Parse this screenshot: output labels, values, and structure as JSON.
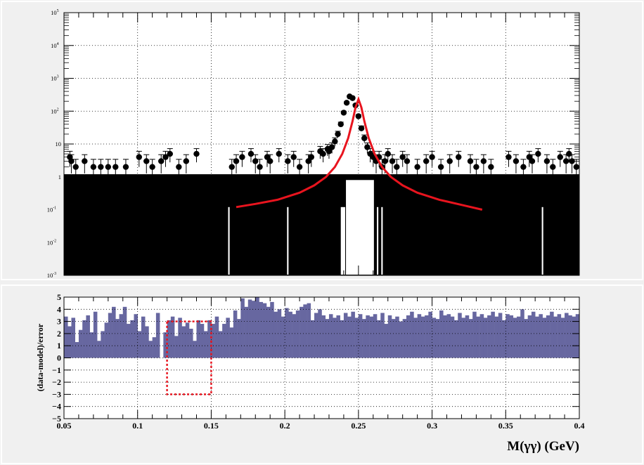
{
  "colors": {
    "background": "#f0f0f0",
    "frame": "#ffffff",
    "data_points": "#000000",
    "fit_curve": "#e8141e",
    "residual_bars": "#6767a0",
    "signal_window": "#e8141e"
  },
  "chart_data": [
    {
      "type": "scatter",
      "panel": "top",
      "title": "",
      "xlabel": "",
      "ylabel": "",
      "xlim": [
        0.05,
        0.4
      ],
      "ylim": [
        0.001,
        100000
      ],
      "yscale": "log",
      "grid": true,
      "ytick_labels": [
        "10^-3",
        "10^-2",
        "10^-1",
        "1",
        "10",
        "10^2",
        "10^3",
        "10^4",
        "10^5"
      ],
      "series": [
        {
          "style": "points-with-errors",
          "x": [
            0.054,
            0.055,
            0.058,
            0.064,
            0.07,
            0.075,
            0.08,
            0.085,
            0.092,
            0.101,
            0.106,
            0.11,
            0.116,
            0.119,
            0.122,
            0.128,
            0.133,
            0.14,
            0.164,
            0.167,
            0.171,
            0.177,
            0.18,
            0.183,
            0.188,
            0.19,
            0.196,
            0.202,
            0.206,
            0.21,
            0.216,
            0.218,
            0.224,
            0.226,
            0.229,
            0.23,
            0.232,
            0.234,
            0.236,
            0.238,
            0.24,
            0.242,
            0.244,
            0.246,
            0.248,
            0.25,
            0.252,
            0.254,
            0.256,
            0.258,
            0.26,
            0.262,
            0.264,
            0.266,
            0.268,
            0.27,
            0.273,
            0.276,
            0.28,
            0.283,
            0.29,
            0.296,
            0.3,
            0.306,
            0.312,
            0.318,
            0.326,
            0.33,
            0.335,
            0.34,
            0.352,
            0.357,
            0.362,
            0.366,
            0.368,
            0.372,
            0.378,
            0.382,
            0.387,
            0.391,
            0.393,
            0.395,
            0.398
          ],
          "y": [
            4,
            3,
            2,
            3,
            2,
            2,
            2,
            2,
            2,
            4,
            3,
            2,
            3,
            4,
            5,
            2,
            3,
            5,
            2,
            3,
            4,
            5,
            3,
            2,
            4,
            3,
            5,
            3,
            4,
            2,
            3,
            4,
            6,
            5,
            7,
            6,
            8,
            12,
            20,
            40,
            90,
            180,
            280,
            250,
            150,
            70,
            30,
            15,
            8,
            5,
            4,
            3,
            4,
            2,
            3,
            5,
            3,
            2,
            4,
            3,
            2,
            3,
            4,
            2,
            3,
            4,
            3,
            2,
            3,
            2,
            4,
            3,
            2,
            4,
            3,
            5,
            3,
            2,
            4,
            3,
            5,
            3,
            2
          ]
        },
        {
          "style": "line",
          "x": [
            0.167,
            0.18,
            0.195,
            0.21,
            0.22,
            0.228,
            0.234,
            0.239,
            0.243,
            0.246,
            0.248,
            0.25,
            0.252,
            0.254,
            0.257,
            0.261,
            0.266,
            0.272,
            0.28,
            0.29,
            0.305,
            0.32,
            0.334
          ],
          "y": [
            0.12,
            0.15,
            0.2,
            0.33,
            0.55,
            1.0,
            2.0,
            5.0,
            15,
            50,
            130,
            230,
            130,
            50,
            15,
            5.0,
            2.0,
            1.0,
            0.55,
            0.33,
            0.2,
            0.14,
            0.1
          ]
        }
      ]
    },
    {
      "type": "bar",
      "panel": "bottom",
      "title": "",
      "xlabel": "M(γγ) (GeV)",
      "ylabel": "(data-model)/error",
      "xlim": [
        0.05,
        0.4
      ],
      "ylim": [
        -5,
        5
      ],
      "grid": true,
      "x_ticks": [
        0.05,
        0.1,
        0.15,
        0.2,
        0.25,
        0.3,
        0.35,
        0.4
      ],
      "x_tick_labels": [
        "0.05",
        "0.1",
        "0.15",
        "0.2",
        "0.25",
        "0.3",
        "0.35",
        "0.4"
      ],
      "y_ticks": [
        -5,
        -4,
        -3,
        -2,
        -1,
        0,
        1,
        2,
        3,
        4,
        5
      ],
      "y_tick_labels": [
        "−5",
        "−4",
        "−3",
        "−2",
        "−1",
        "0",
        "1",
        "2",
        "3",
        "4",
        "5"
      ],
      "bin_width": 0.0025,
      "x_start": 0.05,
      "values": [
        3.4,
        2.6,
        3.3,
        1.3,
        2.3,
        3.1,
        3.5,
        2.1,
        3.8,
        1.4,
        2.2,
        2.9,
        3.7,
        4.2,
        3.2,
        3.6,
        4.2,
        2.8,
        3.1,
        3.6,
        2.2,
        3.4,
        2.6,
        1.4,
        1.7,
        3.7,
        0.0,
        2.1,
        3.1,
        3.4,
        1.8,
        3.3,
        2.6,
        2.9,
        2.4,
        1.4,
        3.1,
        2.8,
        2.2,
        3.1,
        2.8,
        3.4,
        2.2,
        2.8,
        3.3,
        2.5,
        3.9,
        3.2,
        4.9,
        4.2,
        4.8,
        4.7,
        5.0,
        4.6,
        4.5,
        4.2,
        4.6,
        3.8,
        4.0,
        3.4,
        4.1,
        3.8,
        3.6,
        3.9,
        4.2,
        4.4,
        4.5,
        3.1,
        3.7,
        4.0,
        3.5,
        3.2,
        3.6,
        3.3,
        3.5,
        3.1,
        3.7,
        3.4,
        3.8,
        3.3,
        3.6,
        3.2,
        3.5,
        3.4,
        3.6,
        3.1,
        3.7,
        2.8,
        3.5,
        3.2,
        3.4,
        3.0,
        3.2,
        3.5,
        3.8,
        3.3,
        3.6,
        3.4,
        3.5,
        3.8,
        3.3,
        3.2,
        3.9,
        3.5,
        3.6,
        3.4,
        3.1,
        3.7,
        3.3,
        3.5,
        3.2,
        3.8,
        3.4,
        3.6,
        3.3,
        3.5,
        3.8,
        3.4,
        3.7,
        3.1,
        3.6,
        3.5,
        3.3,
        3.4,
        4.0,
        3.2,
        3.5,
        3.8,
        3.4,
        3.6,
        3.3,
        3.5,
        3.8,
        3.4,
        3.6,
        3.3,
        3.7,
        3.5,
        3.4,
        3.6
      ],
      "signal_window": {
        "x": [
          0.12,
          0.15
        ],
        "y": [
          -3,
          3
        ],
        "style": "dotted"
      }
    }
  ]
}
